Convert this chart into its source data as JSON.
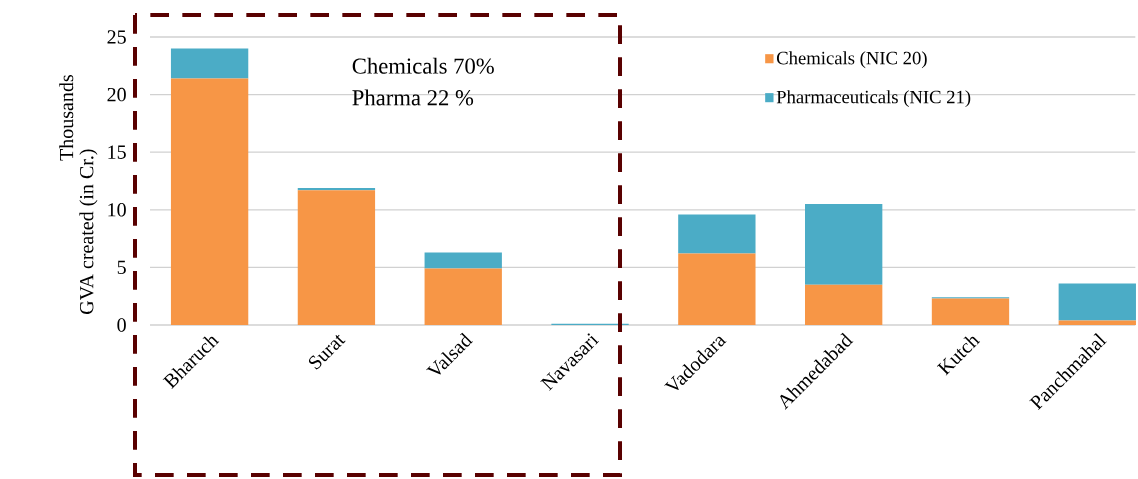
{
  "chart_data": {
    "type": "bar",
    "stacked": true,
    "ylabel": "GVA created  (in Cr.)",
    "annotations": [
      "Thousands",
      "Chemicals 70%",
      "Pharma 22 %"
    ],
    "categories": [
      "Bharuch",
      "Surat",
      "Valsad",
      "Navasari",
      "Vadodara",
      "Ahmedabad",
      "Kutch",
      "Panchmahal"
    ],
    "series": [
      {
        "name": "Chemicals (NIC 20)",
        "color": "#f79646",
        "values": [
          21.4,
          11.7,
          4.9,
          0,
          6.2,
          3.5,
          2.3,
          0.4
        ]
      },
      {
        "name": "Pharmaceuticals (NIC 21)",
        "color": "#4bacc6",
        "values": [
          2.6,
          0.2,
          1.4,
          0.1,
          3.4,
          7.0,
          0.1,
          3.2
        ]
      }
    ],
    "ylim": [
      0,
      25
    ],
    "yticks": [
      0,
      5,
      10,
      15,
      20,
      25
    ],
    "grid": "y",
    "legend": "top right"
  }
}
